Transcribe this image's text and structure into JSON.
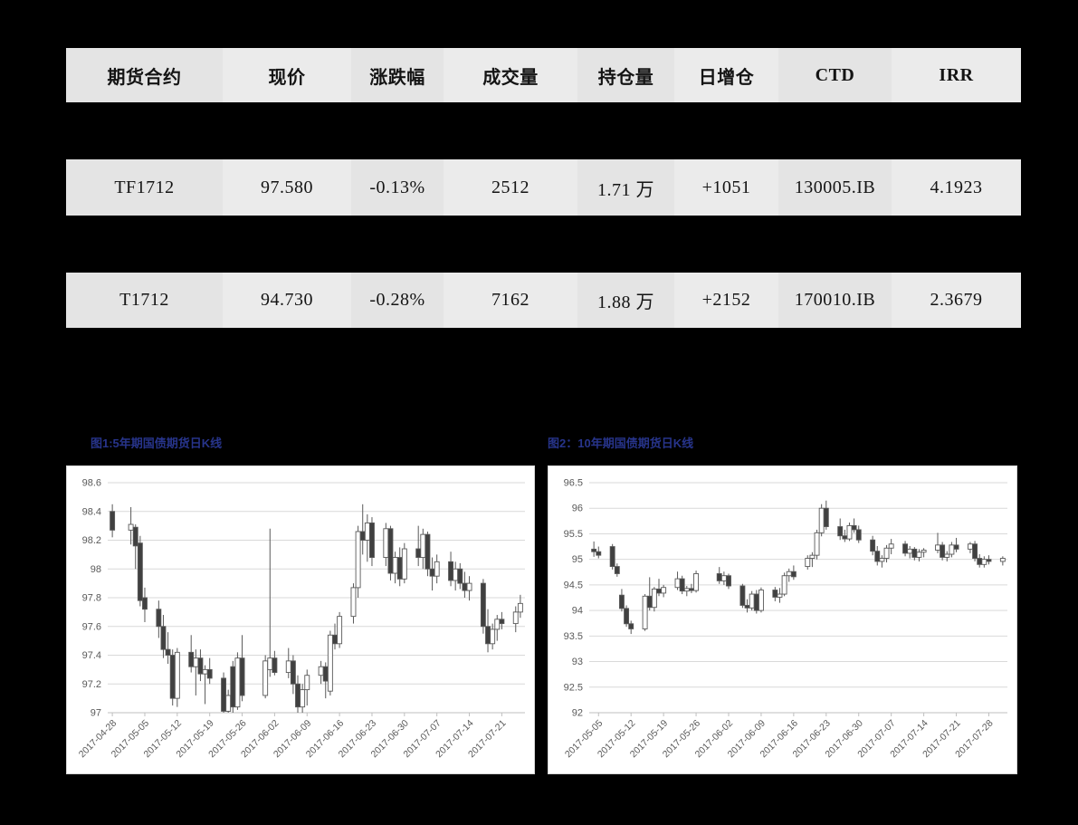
{
  "page": {
    "background": "#000000"
  },
  "table": {
    "headers": [
      "期货合约",
      "现价",
      "涨跌幅",
      "成交量",
      "持仓量",
      "日增仓",
      "CTD",
      "IRR"
    ],
    "rows": [
      {
        "cells": [
          "TF1712",
          "97.580",
          "-0.13%",
          "2512",
          "1.71 万",
          "+1051",
          "130005.IB",
          "4.1923"
        ]
      },
      {
        "cells": [
          "T1712",
          "94.730",
          "-0.28%",
          "7162",
          "1.88 万",
          "+2152",
          "170010.IB",
          "2.3679"
        ]
      }
    ]
  },
  "figures": {
    "fig1_title": "图1:5年期国债期货日K线",
    "fig2_title": "图2：10年期国债期货日K线"
  },
  "colors": {
    "title_blue": "#27348b",
    "grid": "#d9d9d9",
    "axis": "#bfbfbf",
    "label": "#595959",
    "candle_up_fill": "#ffffff",
    "candle_down_fill": "#404040",
    "candle_stroke": "#595959"
  },
  "chart_data": [
    {
      "type": "candlestick",
      "title": "图1:5年期国债期货日K线",
      "ylabel": "",
      "xlabel": "",
      "ylim": [
        97,
        98.6
      ],
      "y_ticks": [
        97,
        97.2,
        97.4,
        97.6,
        97.8,
        98,
        98.2,
        98.4,
        98.6
      ],
      "x_domain": [
        "2017-04-27",
        "2017-07-26"
      ],
      "x_tick_labels": [
        "2017-04-28",
        "2017-05-05",
        "2017-05-12",
        "2017-05-19",
        "2017-05-26",
        "2017-06-02",
        "2017-06-09",
        "2017-06-16",
        "2017-06-23",
        "2017-06-30",
        "2017-07-07",
        "2017-07-14",
        "2017-07-21"
      ],
      "legend": "none",
      "grid": "horizontal",
      "candles": [
        [
          "2017-04-28",
          98.4,
          98.45,
          98.22,
          98.27
        ],
        [
          "2017-05-02",
          98.27,
          98.43,
          98.17,
          98.31
        ],
        [
          "2017-05-03",
          98.29,
          98.31,
          98.0,
          98.16
        ],
        [
          "2017-05-04",
          98.18,
          98.23,
          97.74,
          97.78
        ],
        [
          "2017-05-05",
          97.8,
          97.87,
          97.63,
          97.72
        ],
        [
          "2017-05-08",
          97.72,
          97.78,
          97.52,
          97.6
        ],
        [
          "2017-05-09",
          97.6,
          97.68,
          97.38,
          97.44
        ],
        [
          "2017-05-10",
          97.44,
          97.56,
          97.34,
          97.4
        ],
        [
          "2017-05-11",
          97.4,
          97.44,
          97.05,
          97.1
        ],
        [
          "2017-05-12",
          97.1,
          97.45,
          97.04,
          97.42
        ],
        [
          "2017-05-15",
          97.42,
          97.54,
          97.28,
          97.32
        ],
        [
          "2017-05-16",
          97.32,
          97.44,
          97.12,
          97.38
        ],
        [
          "2017-05-17",
          97.38,
          97.44,
          97.22,
          97.27
        ],
        [
          "2017-05-18",
          97.27,
          97.33,
          97.06,
          97.3
        ],
        [
          "2017-05-19",
          97.3,
          97.38,
          97.2,
          97.24
        ],
        [
          "2017-05-22",
          97.24,
          97.28,
          96.98,
          97.01
        ],
        [
          "2017-05-23",
          97.01,
          97.16,
          96.96,
          97.12
        ],
        [
          "2017-05-24",
          97.32,
          97.36,
          97.0,
          97.04
        ],
        [
          "2017-05-25",
          97.04,
          97.42,
          97.02,
          97.38
        ],
        [
          "2017-05-26",
          97.38,
          97.54,
          97.08,
          97.12
        ],
        [
          "2017-05-31",
          97.12,
          97.4,
          97.1,
          97.36
        ],
        [
          "2017-06-01",
          97.3,
          98.28,
          97.25,
          97.38
        ],
        [
          "2017-06-02",
          97.38,
          97.43,
          97.26,
          97.28
        ],
        [
          "2017-06-05",
          97.28,
          97.45,
          97.24,
          97.36
        ],
        [
          "2017-06-06",
          97.36,
          97.4,
          97.13,
          97.2
        ],
        [
          "2017-06-07",
          97.2,
          97.26,
          96.99,
          97.04
        ],
        [
          "2017-06-08",
          97.04,
          97.2,
          96.98,
          97.16
        ],
        [
          "2017-06-09",
          97.16,
          97.3,
          97.05,
          97.26
        ],
        [
          "2017-06-12",
          97.26,
          97.36,
          97.2,
          97.32
        ],
        [
          "2017-06-13",
          97.32,
          97.35,
          97.1,
          97.22
        ],
        [
          "2017-06-14",
          97.15,
          97.57,
          97.12,
          97.54
        ],
        [
          "2017-06-15",
          97.54,
          97.62,
          97.44,
          97.48
        ],
        [
          "2017-06-16",
          97.48,
          97.7,
          97.45,
          97.67
        ],
        [
          "2017-06-19",
          97.67,
          97.9,
          97.62,
          97.87
        ],
        [
          "2017-06-20",
          97.87,
          98.3,
          97.8,
          98.26
        ],
        [
          "2017-06-21",
          98.26,
          98.45,
          98.1,
          98.2
        ],
        [
          "2017-06-22",
          98.2,
          98.38,
          98.05,
          98.32
        ],
        [
          "2017-06-23",
          98.32,
          98.36,
          98.02,
          98.08
        ],
        [
          "2017-06-26",
          98.08,
          98.32,
          98.02,
          98.28
        ],
        [
          "2017-06-27",
          98.28,
          98.3,
          97.92,
          97.97
        ],
        [
          "2017-06-28",
          97.97,
          98.12,
          97.9,
          98.08
        ],
        [
          "2017-06-29",
          98.08,
          98.15,
          97.88,
          97.93
        ],
        [
          "2017-06-30",
          97.93,
          98.18,
          97.9,
          98.14
        ],
        [
          "2017-07-03",
          98.14,
          98.3,
          98.02,
          98.08
        ],
        [
          "2017-07-04",
          98.08,
          98.28,
          98.0,
          98.24
        ],
        [
          "2017-07-05",
          98.24,
          98.26,
          97.95,
          98.0
        ],
        [
          "2017-07-06",
          98.0,
          98.08,
          97.85,
          97.95
        ],
        [
          "2017-07-07",
          97.95,
          98.1,
          97.9,
          98.05
        ],
        [
          "2017-07-10",
          98.05,
          98.12,
          97.88,
          97.92
        ],
        [
          "2017-07-11",
          97.92,
          98.05,
          97.85,
          98.0
        ],
        [
          "2017-07-12",
          98.0,
          98.04,
          97.86,
          97.9
        ],
        [
          "2017-07-13",
          97.9,
          97.98,
          97.8,
          97.85
        ],
        [
          "2017-07-14",
          97.85,
          97.95,
          97.78,
          97.9
        ],
        [
          "2017-07-17",
          97.9,
          97.93,
          97.55,
          97.6
        ],
        [
          "2017-07-18",
          97.6,
          97.72,
          97.42,
          97.48
        ],
        [
          "2017-07-19",
          97.48,
          97.62,
          97.44,
          97.58
        ],
        [
          "2017-07-20",
          97.58,
          97.68,
          97.5,
          97.65
        ],
        [
          "2017-07-21",
          97.65,
          97.7,
          97.58,
          97.62
        ],
        [
          "2017-07-24",
          97.62,
          97.74,
          97.56,
          97.7
        ],
        [
          "2017-07-25",
          97.7,
          97.82,
          97.66,
          97.76
        ]
      ]
    },
    {
      "type": "candlestick",
      "title": "图2：10年期国债期货日K线",
      "ylabel": "",
      "xlabel": "",
      "ylim": [
        92,
        96.5
      ],
      "y_ticks": [
        92,
        92.5,
        93,
        93.5,
        94,
        94.5,
        95,
        95.5,
        96,
        96.5
      ],
      "x_domain": [
        "2017-05-03",
        "2017-08-01"
      ],
      "x_tick_labels": [
        "2017-05-05",
        "2017-05-12",
        "2017-05-19",
        "2017-05-26",
        "2017-06-02",
        "2017-06-09",
        "2017-06-16",
        "2017-06-23",
        "2017-06-30",
        "2017-07-07",
        "2017-07-14",
        "2017-07-21",
        "2017-07-28"
      ],
      "legend": "none",
      "grid": "horizontal",
      "candles": [
        [
          "2017-05-04",
          95.2,
          95.35,
          95.05,
          95.15
        ],
        [
          "2017-05-05",
          95.15,
          95.25,
          95.02,
          95.08
        ],
        [
          "2017-05-08",
          95.25,
          95.3,
          94.8,
          94.86
        ],
        [
          "2017-05-09",
          94.86,
          94.92,
          94.66,
          94.72
        ],
        [
          "2017-05-10",
          94.3,
          94.42,
          93.98,
          94.04
        ],
        [
          "2017-05-11",
          94.04,
          94.1,
          93.68,
          93.74
        ],
        [
          "2017-05-12",
          93.74,
          93.8,
          93.54,
          93.64
        ],
        [
          "2017-05-15",
          93.64,
          94.32,
          93.6,
          94.28
        ],
        [
          "2017-05-16",
          94.28,
          94.65,
          94.0,
          94.06
        ],
        [
          "2017-05-17",
          94.06,
          94.46,
          93.98,
          94.42
        ],
        [
          "2017-05-18",
          94.42,
          94.62,
          94.28,
          94.34
        ],
        [
          "2017-05-19",
          94.34,
          94.5,
          94.26,
          94.45
        ],
        [
          "2017-05-22",
          94.45,
          94.76,
          94.4,
          94.62
        ],
        [
          "2017-05-23",
          94.62,
          94.68,
          94.32,
          94.38
        ],
        [
          "2017-05-24",
          94.38,
          94.48,
          94.28,
          94.43
        ],
        [
          "2017-05-25",
          94.43,
          94.52,
          94.34,
          94.39
        ],
        [
          "2017-05-26",
          94.39,
          94.78,
          94.35,
          94.72
        ],
        [
          "2017-05-31",
          94.72,
          94.85,
          94.52,
          94.58
        ],
        [
          "2017-06-01",
          94.58,
          94.76,
          94.5,
          94.68
        ],
        [
          "2017-06-02",
          94.68,
          94.72,
          94.42,
          94.48
        ],
        [
          "2017-06-05",
          94.48,
          94.52,
          94.05,
          94.1
        ],
        [
          "2017-06-06",
          94.1,
          94.22,
          93.96,
          94.05
        ],
        [
          "2017-06-07",
          94.05,
          94.38,
          94.0,
          94.32
        ],
        [
          "2017-06-08",
          94.32,
          94.4,
          93.94,
          94.0
        ],
        [
          "2017-06-09",
          94.0,
          94.45,
          93.96,
          94.4
        ],
        [
          "2017-06-12",
          94.4,
          94.46,
          94.18,
          94.26
        ],
        [
          "2017-06-13",
          94.26,
          94.44,
          94.15,
          94.32
        ],
        [
          "2017-06-14",
          94.32,
          94.74,
          94.28,
          94.68
        ],
        [
          "2017-06-15",
          94.68,
          94.82,
          94.56,
          94.76
        ],
        [
          "2017-06-16",
          94.76,
          94.88,
          94.6,
          94.66
        ],
        [
          "2017-06-19",
          94.86,
          95.08,
          94.8,
          95.02
        ],
        [
          "2017-06-20",
          95.02,
          95.14,
          94.85,
          95.08
        ],
        [
          "2017-06-21",
          95.08,
          95.58,
          95.0,
          95.52
        ],
        [
          "2017-06-22",
          95.52,
          96.08,
          95.45,
          96.0
        ],
        [
          "2017-06-23",
          96.0,
          96.15,
          95.58,
          95.64
        ],
        [
          "2017-06-26",
          95.64,
          95.8,
          95.38,
          95.46
        ],
        [
          "2017-06-27",
          95.46,
          95.58,
          95.34,
          95.4
        ],
        [
          "2017-06-28",
          95.4,
          95.72,
          95.36,
          95.66
        ],
        [
          "2017-06-29",
          95.66,
          95.8,
          95.52,
          95.58
        ],
        [
          "2017-06-30",
          95.58,
          95.66,
          95.32,
          95.38
        ],
        [
          "2017-07-03",
          95.38,
          95.46,
          95.08,
          95.16
        ],
        [
          "2017-07-04",
          95.16,
          95.26,
          94.88,
          94.96
        ],
        [
          "2017-07-05",
          94.96,
          95.08,
          94.84,
          95.02
        ],
        [
          "2017-07-06",
          95.02,
          95.28,
          94.94,
          95.22
        ],
        [
          "2017-07-07",
          95.22,
          95.4,
          95.1,
          95.3
        ],
        [
          "2017-07-10",
          95.3,
          95.36,
          95.06,
          95.12
        ],
        [
          "2017-07-11",
          95.12,
          95.26,
          95.02,
          95.2
        ],
        [
          "2017-07-12",
          95.2,
          95.24,
          94.98,
          95.04
        ],
        [
          "2017-07-13",
          95.04,
          95.2,
          94.96,
          95.14
        ],
        [
          "2017-07-14",
          95.14,
          95.22,
          95.04,
          95.18
        ],
        [
          "2017-07-17",
          95.18,
          95.52,
          95.12,
          95.28
        ],
        [
          "2017-07-18",
          95.28,
          95.34,
          94.98,
          95.04
        ],
        [
          "2017-07-19",
          95.04,
          95.16,
          94.96,
          95.1
        ],
        [
          "2017-07-20",
          95.1,
          95.34,
          95.04,
          95.28
        ],
        [
          "2017-07-21",
          95.28,
          95.42,
          95.14,
          95.2
        ],
        [
          "2017-07-24",
          95.2,
          95.34,
          95.12,
          95.3
        ],
        [
          "2017-07-25",
          95.3,
          95.36,
          94.96,
          95.02
        ],
        [
          "2017-07-26",
          95.02,
          95.1,
          94.84,
          94.9
        ],
        [
          "2017-07-27",
          94.9,
          95.06,
          94.84,
          95.0
        ],
        [
          "2017-07-28",
          95.0,
          95.08,
          94.9,
          94.96
        ],
        [
          "2017-07-31",
          94.96,
          95.06,
          94.88,
          95.02
        ]
      ]
    }
  ]
}
